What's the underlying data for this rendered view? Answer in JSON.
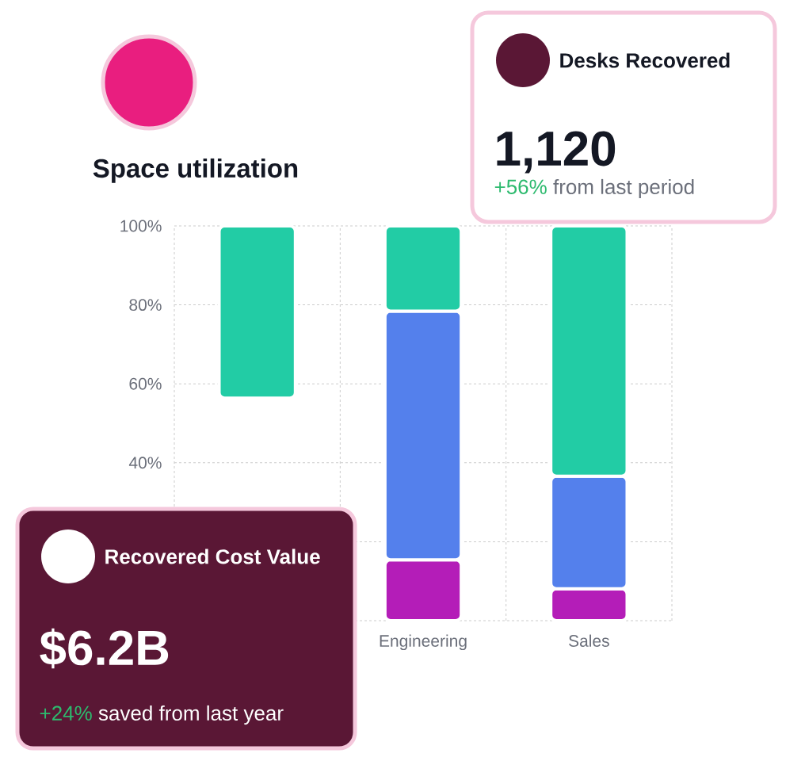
{
  "chart_data": [
    {
      "type": "bar",
      "title": "Space utilization",
      "categories": [
        null,
        "Engineering",
        "Sales"
      ],
      "series": [
        {
          "color": "#b41db8",
          "base": [
            null,
            0,
            0
          ],
          "values": [
            null,
            15.4,
            8.1
          ]
        },
        {
          "color": "#5480ec",
          "base": [
            null,
            15.4,
            8.1
          ],
          "values": [
            null,
            63,
            28.5
          ]
        },
        {
          "color": "#22cca5",
          "base": [
            56.4,
            78.4,
            36.6
          ],
          "values": [
            43.6,
            21.6,
            63.4
          ]
        }
      ],
      "ylim": [
        0,
        100
      ],
      "yticks": [
        {
          "value": 0,
          "label": null
        },
        {
          "value": 20,
          "label": null
        },
        {
          "value": 40,
          "label": "40%"
        },
        {
          "value": 60,
          "label": "60%"
        },
        {
          "value": 80,
          "label": "80%"
        },
        {
          "value": 100,
          "label": "100%"
        }
      ],
      "grid": true
    },
    {
      "type": "other",
      "title": "Desks Recovered",
      "annotations": [
        "1,120",
        "+56%",
        "from last period"
      ]
    },
    {
      "type": "other",
      "title": "Recovered Cost Value",
      "annotations": [
        "$6.2B",
        "+24%",
        "saved from last year"
      ]
    }
  ]
}
